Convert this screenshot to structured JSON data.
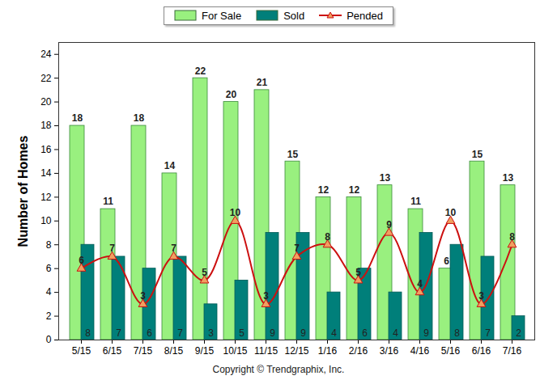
{
  "chart_data": {
    "type": "bar",
    "categories": [
      "5/15",
      "6/15",
      "7/15",
      "8/15",
      "9/15",
      "10/15",
      "11/15",
      "12/15",
      "1/16",
      "2/16",
      "3/16",
      "4/16",
      "5/16",
      "6/16",
      "7/16"
    ],
    "series": [
      {
        "name": "For Sale",
        "type": "bar",
        "color": "#99f07f",
        "values": [
          18,
          11,
          18,
          14,
          22,
          20,
          21,
          15,
          12,
          12,
          13,
          11,
          6,
          15,
          13
        ]
      },
      {
        "name": "Sold",
        "type": "bar",
        "color": "#007f7a",
        "values": [
          8,
          7,
          6,
          7,
          3,
          5,
          9,
          9,
          4,
          6,
          4,
          9,
          8,
          7,
          2
        ]
      },
      {
        "name": "Pended",
        "type": "line",
        "color": "#cc1010",
        "marker": "triangle",
        "values": [
          6,
          7,
          3,
          7,
          5,
          10,
          3,
          7,
          8,
          5,
          9,
          4,
          10,
          3,
          8
        ]
      }
    ],
    "y_label": "Number of Homes",
    "ylim": [
      0,
      25
    ],
    "yticks": [
      0,
      2,
      4,
      6,
      8,
      10,
      12,
      14,
      16,
      18,
      20,
      22,
      24
    ],
    "grid": false,
    "legend": "top",
    "data_labels": true,
    "annotations": [
      "Copyright © Trendgraphix, Inc."
    ]
  }
}
